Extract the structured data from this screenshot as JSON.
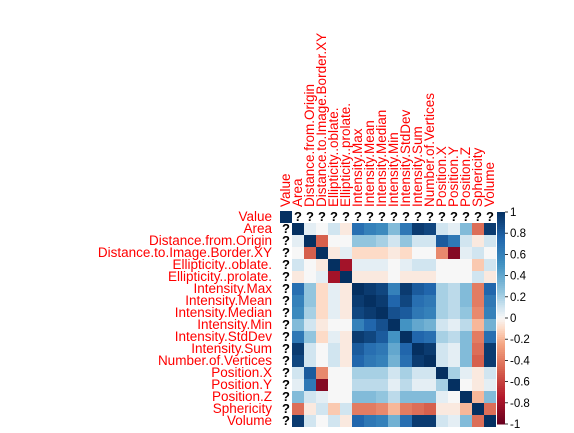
{
  "chart_data": {
    "type": "heatmap",
    "labels": [
      "Value",
      "Area",
      "Distance.from.Origin",
      "Distance.to.Image.Border.XY",
      "Ellipticity..oblate.",
      "Ellipticity..prolate.",
      "Intensity.Max",
      "Intensity.Mean",
      "Intensity.Median",
      "Intensity.Min",
      "Intensity.StdDev",
      "Intensity.Sum",
      "Number.of.Vertices",
      "Position.X",
      "Position.Y",
      "Position.Z",
      "Sphericity",
      "Volume"
    ],
    "matrix": [
      [
        1,
        null,
        null,
        null,
        null,
        null,
        null,
        null,
        null,
        null,
        null,
        null,
        null,
        null,
        null,
        null,
        null,
        null
      ],
      [
        null,
        1,
        0.05,
        0,
        0.1,
        -0.05,
        0.7,
        0.6,
        0.55,
        0.3,
        0.65,
        0.95,
        0.9,
        0.1,
        0.05,
        0.3,
        -0.45,
        0.95
      ],
      [
        null,
        0.05,
        1,
        -0.5,
        0,
        0,
        0.25,
        0.25,
        0.2,
        0.1,
        0.25,
        0.1,
        0.1,
        0.8,
        0.65,
        0.1,
        -0.05,
        0.1
      ],
      [
        null,
        0,
        -0.5,
        1,
        -0.05,
        0.05,
        -0.1,
        -0.1,
        -0.1,
        -0.05,
        -0.1,
        0,
        0,
        -0.35,
        -0.9,
        0.05,
        0.1,
        0
      ],
      [
        null,
        0.1,
        0,
        -0.05,
        1,
        -0.8,
        0.05,
        0.05,
        0.05,
        0,
        0.05,
        0.1,
        0.1,
        0,
        0,
        0,
        -0.15,
        0.1
      ],
      [
        null,
        -0.05,
        0,
        0.05,
        -0.8,
        1,
        -0.05,
        -0.05,
        -0.05,
        0,
        -0.05,
        -0.05,
        -0.05,
        0,
        0,
        0,
        0.1,
        -0.05
      ],
      [
        null,
        0.7,
        0.25,
        -0.1,
        0.05,
        -0.05,
        1,
        0.95,
        0.9,
        0.6,
        0.95,
        0.8,
        0.75,
        0.2,
        0.15,
        0.3,
        -0.4,
        0.75
      ],
      [
        null,
        0.6,
        0.25,
        -0.1,
        0.05,
        -0.05,
        0.95,
        1,
        0.95,
        0.75,
        0.9,
        0.7,
        0.65,
        0.2,
        0.15,
        0.3,
        -0.4,
        0.65
      ],
      [
        null,
        0.55,
        0.2,
        -0.1,
        0.05,
        -0.05,
        0.9,
        0.95,
        1,
        0.85,
        0.8,
        0.65,
        0.6,
        0.2,
        0.15,
        0.25,
        -0.35,
        0.6
      ],
      [
        null,
        0.3,
        0.1,
        -0.05,
        0,
        0,
        0.6,
        0.75,
        0.85,
        1,
        0.5,
        0.4,
        0.35,
        0.1,
        0.05,
        0.15,
        -0.2,
        0.35
      ],
      [
        null,
        0.65,
        0.25,
        -0.1,
        0.05,
        -0.05,
        0.95,
        0.9,
        0.8,
        0.5,
        1,
        0.75,
        0.7,
        0.2,
        0.15,
        0.3,
        -0.4,
        0.7
      ],
      [
        null,
        0.95,
        0.1,
        0,
        0.1,
        -0.05,
        0.8,
        0.7,
        0.65,
        0.4,
        0.75,
        1,
        0.95,
        0.1,
        0.05,
        0.3,
        -0.45,
        0.95
      ],
      [
        null,
        0.9,
        0.1,
        0,
        0.1,
        -0.05,
        0.75,
        0.65,
        0.6,
        0.35,
        0.7,
        0.95,
        1,
        0.1,
        0.05,
        0.3,
        -0.5,
        0.95
      ],
      [
        null,
        0.1,
        0.8,
        -0.35,
        0,
        0,
        0.2,
        0.2,
        0.2,
        0.1,
        0.2,
        0.1,
        0.1,
        1,
        0.2,
        0.05,
        -0.05,
        0.1
      ],
      [
        null,
        0.05,
        0.65,
        -0.9,
        0,
        0,
        0.15,
        0.15,
        0.15,
        0.05,
        0.15,
        0.05,
        0.05,
        0.2,
        1,
        0,
        -0.05,
        0.05
      ],
      [
        null,
        0.3,
        0.1,
        0.05,
        0,
        0,
        0.3,
        0.3,
        0.25,
        0.15,
        0.3,
        0.3,
        0.3,
        0.05,
        0,
        1,
        -0.2,
        0.3
      ],
      [
        null,
        -0.45,
        -0.05,
        0.1,
        -0.15,
        0.1,
        -0.4,
        -0.4,
        -0.35,
        -0.2,
        -0.4,
        -0.45,
        -0.5,
        -0.05,
        -0.05,
        -0.2,
        1,
        -0.45
      ],
      [
        null,
        0.95,
        0.1,
        0,
        0.1,
        -0.05,
        0.75,
        0.65,
        0.6,
        0.35,
        0.7,
        0.95,
        0.95,
        0.1,
        0.05,
        0.3,
        -0.45,
        1
      ]
    ],
    "na_symbol": "?",
    "colorbar": {
      "range": [
        -1,
        1
      ],
      "ticks": [
        "1",
        "0.8",
        "0.6",
        "0.4",
        "0.2",
        "0",
        "-0.2",
        "-0.4",
        "-0.6",
        "-0.8",
        "-1"
      ],
      "placement": "right"
    },
    "colors": {
      "label": "#ff0000",
      "negative": "#67001f",
      "zero": "#f7f7f7",
      "positive": "#053061"
    }
  }
}
